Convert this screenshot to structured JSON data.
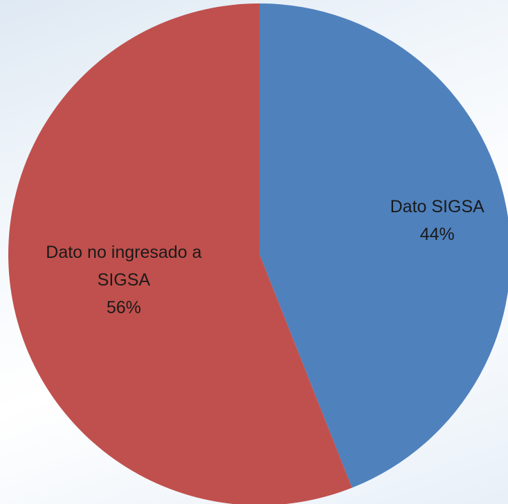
{
  "chart_data": {
    "type": "pie",
    "categories": [
      "Dato SIGSA",
      "Dato no ingresado a SIGSA"
    ],
    "values": [
      44,
      56
    ],
    "value_labels": [
      "44%",
      "56%"
    ],
    "colors": [
      "#4f81bd",
      "#c0504d"
    ]
  }
}
